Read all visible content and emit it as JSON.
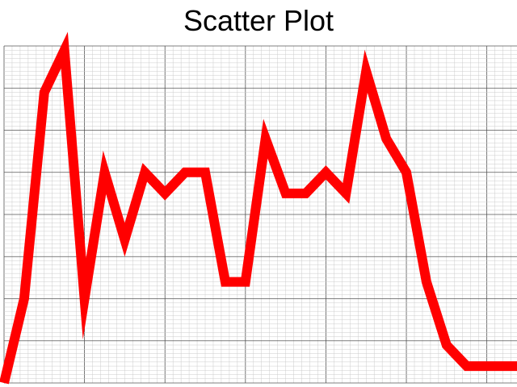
{
  "chart_data": {
    "type": "line",
    "title": "Scatter Plot",
    "xlabel": "",
    "ylabel": "",
    "xlim": [
      0,
      25.5
    ],
    "ylim": [
      0,
      8
    ],
    "grid": true,
    "series": [
      {
        "color": "#ff0000",
        "x": [
          0,
          1,
          2,
          3,
          4,
          5,
          6,
          7,
          8,
          9,
          10,
          11,
          12,
          13,
          14,
          15,
          16,
          17,
          18,
          19,
          20,
          21,
          22,
          23,
          24,
          25,
          26
        ],
        "y": [
          0,
          2,
          6.9,
          7.9,
          2,
          5,
          3.4,
          5,
          4.5,
          5,
          5,
          2.4,
          2.4,
          5.8,
          4.5,
          4.5,
          5,
          4.5,
          7.4,
          5.8,
          5,
          2.4,
          0.9,
          0.4,
          0.4,
          0.4,
          0.4
        ]
      }
    ]
  }
}
